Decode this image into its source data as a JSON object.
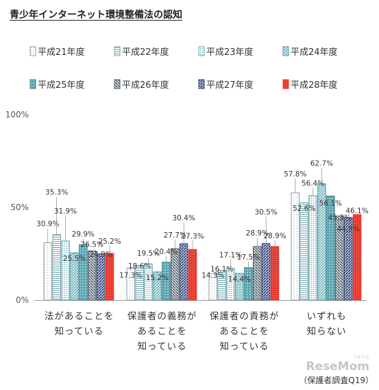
{
  "chart_data": {
    "type": "bar",
    "title": "青少年インターネット環境整備法の認知",
    "categories": [
      [
        "法があることを",
        "知っている"
      ],
      [
        "保護者の義務が",
        "あることを",
        "知っている"
      ],
      [
        "保護者の責務が",
        "あることを",
        "知っている"
      ],
      [
        "いずれも",
        "知らない"
      ]
    ],
    "series": [
      {
        "name": "平成21年度",
        "values": [
          30.9,
          17.3,
          14.3,
          57.8
        ]
      },
      {
        "name": "平成22年度",
        "values": [
          35.3,
          18.6,
          16.1,
          52.6
        ]
      },
      {
        "name": "平成23年度",
        "values": [
          31.9,
          19.5,
          17.1,
          56.4
        ]
      },
      {
        "name": "平成24年度",
        "values": [
          25.5,
          15.2,
          14.4,
          62.7
        ]
      },
      {
        "name": "平成25年度",
        "values": [
          29.9,
          20.4,
          17.5,
          56.1
        ]
      },
      {
        "name": "平成26年度",
        "values": [
          26.5,
          27.7,
          28.9,
          45.3
        ]
      },
      {
        "name": "平成27年度",
        "values": [
          24.9,
          30.4,
          30.5,
          44.5
        ]
      },
      {
        "name": "平成28年度",
        "values": [
          25.2,
          27.3,
          28.9,
          46.1
        ]
      }
    ],
    "value_suffix": "%",
    "ylim": [
      0,
      100
    ],
    "yticks": [
      0,
      50,
      100
    ],
    "ytick_labels": [
      "0%",
      "50%",
      "100%"
    ],
    "grid": false,
    "legend_position": "top",
    "colors": {
      "outline_gray": "#8a9ba3",
      "teal": "#5aa5b0",
      "dark_teal": "#3f7f88",
      "slate": "#4a5a62",
      "navy": "#2d3d6e",
      "red": "#e8392d",
      "axis": "#999999"
    },
    "patterns": [
      "dots",
      "hlines",
      "smalldots",
      "diagonal",
      "grid-dots",
      "dense-diagonal",
      "navy-diagonal",
      "red-dots"
    ]
  },
  "source_note": "（保護者調査Q19）",
  "watermark": "ReseMom",
  "watermark_sub": "リセマム"
}
